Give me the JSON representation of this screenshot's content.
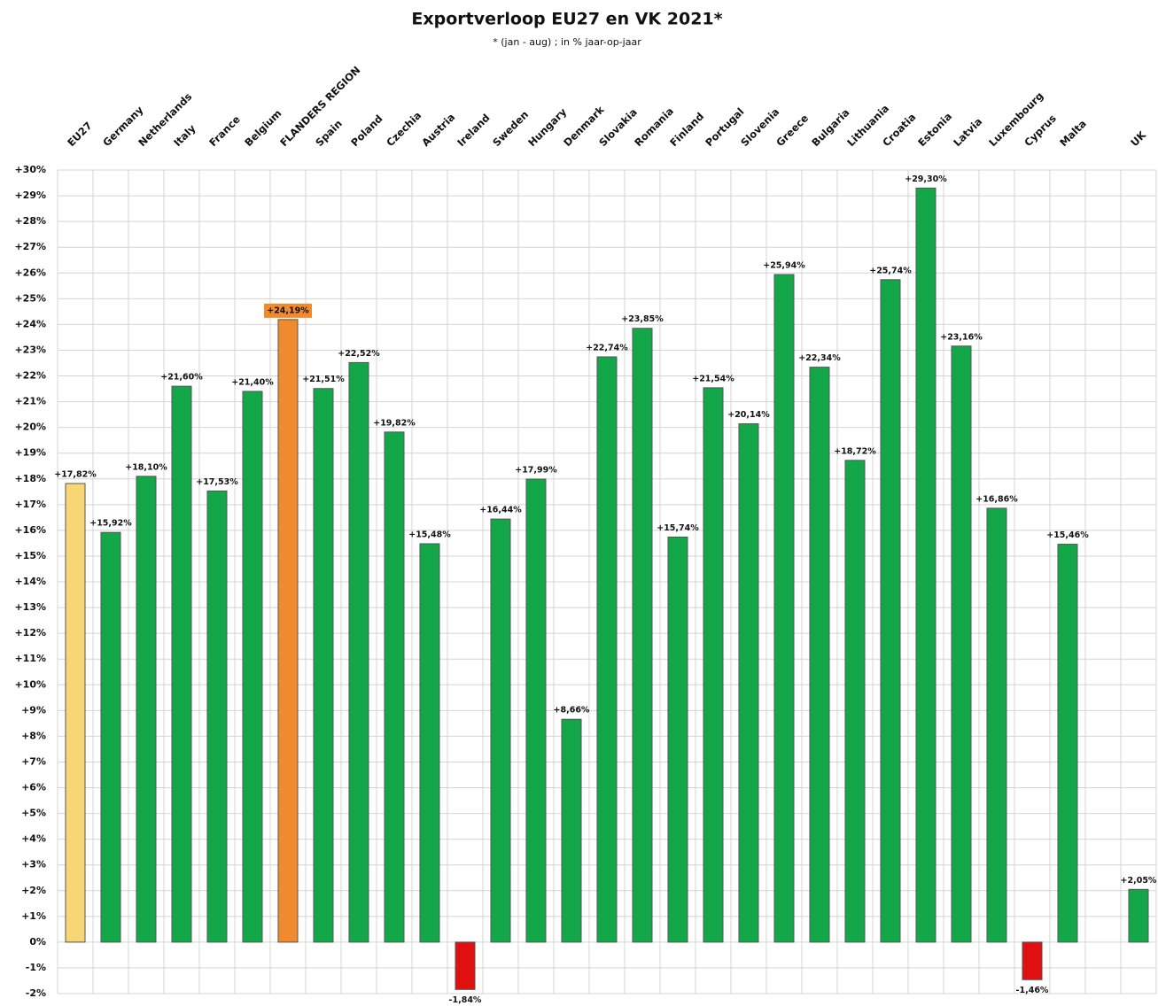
{
  "chart_data": {
    "type": "bar",
    "title": "Exportverloop EU27 en VK 2021*",
    "subtitle": "* (jan - aug) ; in % jaar-op-jaar",
    "categories": [
      "EU27",
      "Germany",
      "Netherlands",
      "Italy",
      "France",
      "Belgium",
      "FLANDERS REGION",
      "Spain",
      "Poland",
      "Czechia",
      "Austria",
      "Ireland",
      "Sweden",
      "Hungary",
      "Denmark",
      "Slovakia",
      "Romania",
      "Finland",
      "Portugal",
      "Slovenia",
      "Greece",
      "Bulgaria",
      "Lithuania",
      "Croatia",
      "Estonia",
      "Latvia",
      "Luxembourg",
      "Cyprus",
      "Malta",
      null,
      "UK"
    ],
    "values": [
      17.82,
      15.92,
      18.1,
      21.6,
      17.53,
      21.4,
      24.19,
      21.51,
      22.52,
      19.82,
      15.48,
      -1.84,
      16.44,
      17.99,
      8.66,
      22.74,
      23.85,
      15.74,
      21.54,
      20.14,
      25.94,
      22.34,
      18.72,
      25.74,
      29.3,
      23.16,
      16.86,
      -1.46,
      15.46,
      null,
      2.05
    ],
    "value_labels": [
      "+17,82%",
      "+15,92%",
      "+18,10%",
      "+21,60%",
      "+17,53%",
      "+21,40%",
      "+24,19%",
      "+21,51%",
      "+22,52%",
      "+19,82%",
      "+15,48%",
      "-1,84%",
      "+16,44%",
      "+17,99%",
      "+8,66%",
      "+22,74%",
      "+23,85%",
      "+15,74%",
      "+21,54%",
      "+20,14%",
      "+25,94%",
      "+22,34%",
      "+18,72%",
      "+25,74%",
      "+29,30%",
      "+23,16%",
      "+16,86%",
      "-1,46%",
      "+15,46%",
      null,
      "+2,05%"
    ],
    "colors": [
      "#f7d774",
      "#12a84a",
      "#12a84a",
      "#12a84a",
      "#12a84a",
      "#12a84a",
      "#f08a2c",
      "#12a84a",
      "#12a84a",
      "#12a84a",
      "#12a84a",
      "#e01010",
      "#12a84a",
      "#12a84a",
      "#12a84a",
      "#12a84a",
      "#12a84a",
      "#12a84a",
      "#12a84a",
      "#12a84a",
      "#12a84a",
      "#12a84a",
      "#12a84a",
      "#12a84a",
      "#12a84a",
      "#12a84a",
      "#12a84a",
      "#e01010",
      "#12a84a",
      null,
      "#12a84a"
    ],
    "highlight_color": "#f08a2c",
    "ylim": [
      -2,
      30
    ],
    "yticks": [
      {
        "value": -2,
        "label": "-2%"
      },
      {
        "value": -1,
        "label": "-1%"
      },
      {
        "value": 0,
        "label": "0%"
      },
      {
        "value": 1,
        "label": "+1%"
      },
      {
        "value": 2,
        "label": "+2%"
      },
      {
        "value": 3,
        "label": "+3%"
      },
      {
        "value": 4,
        "label": "+4%"
      },
      {
        "value": 5,
        "label": "+5%"
      },
      {
        "value": 6,
        "label": "+6%"
      },
      {
        "value": 7,
        "label": "+7%"
      },
      {
        "value": 8,
        "label": "+8%"
      },
      {
        "value": 9,
        "label": "+9%"
      },
      {
        "value": 10,
        "label": "+10%"
      },
      {
        "value": 11,
        "label": "+11%"
      },
      {
        "value": 12,
        "label": "+12%"
      },
      {
        "value": 13,
        "label": "+13%"
      },
      {
        "value": 14,
        "label": "+14%"
      },
      {
        "value": 15,
        "label": "+15%"
      },
      {
        "value": 16,
        "label": "+16%"
      },
      {
        "value": 17,
        "label": "+17%"
      },
      {
        "value": 18,
        "label": "+18%"
      },
      {
        "value": 19,
        "label": "+19%"
      },
      {
        "value": 20,
        "label": "+20%"
      },
      {
        "value": 21,
        "label": "+21%"
      },
      {
        "value": 22,
        "label": "+22%"
      },
      {
        "value": 23,
        "label": "+23%"
      },
      {
        "value": 24,
        "label": "+24%"
      },
      {
        "value": 25,
        "label": "+25%"
      },
      {
        "value": 26,
        "label": "+26%"
      },
      {
        "value": 27,
        "label": "+27%"
      },
      {
        "value": 28,
        "label": "+28%"
      },
      {
        "value": 29,
        "label": "+29%"
      },
      {
        "value": 30,
        "label": "+30%"
      }
    ],
    "grid": true
  }
}
